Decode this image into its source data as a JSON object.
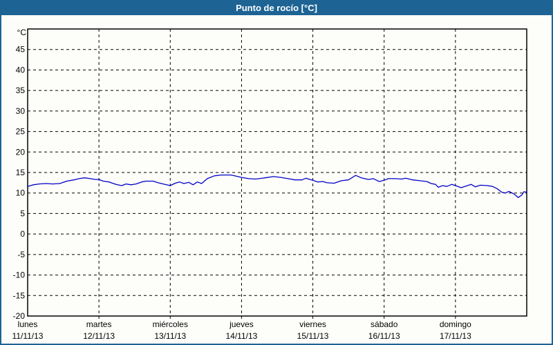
{
  "window": {
    "title": "Punto de rocío [°C]"
  },
  "colors": {
    "titlebar_bg": "#1d6394",
    "titlebar_text": "#ffffff",
    "window_border": "#1d6394",
    "background": "#fdfdfa",
    "frame": "#000000",
    "grid": "#000000",
    "text": "#000000",
    "line": "#0000c8"
  },
  "chart_data": {
    "type": "line",
    "title": "Punto de rocío [°C]",
    "ylabel": "°C",
    "ylim": [
      -20,
      50
    ],
    "yticks": [
      45,
      40,
      35,
      30,
      25,
      20,
      15,
      10,
      5,
      0,
      -5,
      -10,
      -15,
      -20
    ],
    "grid": true,
    "legend": "none",
    "xlim_days": [
      0,
      7
    ],
    "x_categories": [
      {
        "day": "lunes",
        "date": "11/11/13"
      },
      {
        "day": "martes",
        "date": "12/11/13"
      },
      {
        "day": "miércoles",
        "date": "13/11/13"
      },
      {
        "day": "jueves",
        "date": "14/11/13"
      },
      {
        "day": "viernes",
        "date": "15/11/13"
      },
      {
        "day": "sábado",
        "date": "16/11/13"
      },
      {
        "day": "domingo",
        "date": "17/11/13"
      }
    ],
    "series": [
      {
        "name": "Punto de rocío",
        "color": "#0000c8",
        "x": [
          0.0,
          0.08,
          0.16,
          0.26,
          0.35,
          0.45,
          0.55,
          0.65,
          0.72,
          0.8,
          0.88,
          0.95,
          1.0,
          1.06,
          1.14,
          1.24,
          1.32,
          1.38,
          1.45,
          1.52,
          1.6,
          1.66,
          1.76,
          1.83,
          1.9,
          2.0,
          2.07,
          2.13,
          2.19,
          2.26,
          2.32,
          2.38,
          2.44,
          2.52,
          2.62,
          2.72,
          2.85,
          2.95,
          3.0,
          3.1,
          3.2,
          3.33,
          3.45,
          3.55,
          3.65,
          3.75,
          3.85,
          3.9,
          3.96,
          4.0,
          4.07,
          4.14,
          4.2,
          4.3,
          4.4,
          4.5,
          4.6,
          4.68,
          4.78,
          4.85,
          4.93,
          5.0,
          5.06,
          5.15,
          5.25,
          5.3,
          5.4,
          5.5,
          5.6,
          5.66,
          5.72,
          5.76,
          5.82,
          5.88,
          5.95,
          6.0,
          6.08,
          6.15,
          6.22,
          6.28,
          6.35,
          6.45,
          6.52,
          6.58,
          6.65,
          6.7,
          6.75,
          6.82,
          6.88,
          6.93,
          6.96,
          7.0
        ],
        "y": [
          11.6,
          12.0,
          12.2,
          12.3,
          12.2,
          12.3,
          12.9,
          13.2,
          13.5,
          13.7,
          13.5,
          13.3,
          13.3,
          12.9,
          12.7,
          12.1,
          11.8,
          12.2,
          12.0,
          12.2,
          12.7,
          12.9,
          12.9,
          12.5,
          12.2,
          11.8,
          12.4,
          12.7,
          12.3,
          12.6,
          12.0,
          12.7,
          12.3,
          13.5,
          14.2,
          14.4,
          14.4,
          14.0,
          13.8,
          13.5,
          13.4,
          13.7,
          14.0,
          13.8,
          13.5,
          13.2,
          13.2,
          13.6,
          13.3,
          13.1,
          12.7,
          12.8,
          12.5,
          12.4,
          13.0,
          13.2,
          14.3,
          13.7,
          13.3,
          13.5,
          12.8,
          13.1,
          13.5,
          13.5,
          13.4,
          13.6,
          13.2,
          13.0,
          12.8,
          12.3,
          12.1,
          11.4,
          11.8,
          11.6,
          12.1,
          11.8,
          11.3,
          11.7,
          12.1,
          11.5,
          11.9,
          11.8,
          11.6,
          11.1,
          10.2,
          10.0,
          10.4,
          9.8,
          8.9,
          9.5,
          10.3,
          10.2
        ]
      }
    ]
  }
}
